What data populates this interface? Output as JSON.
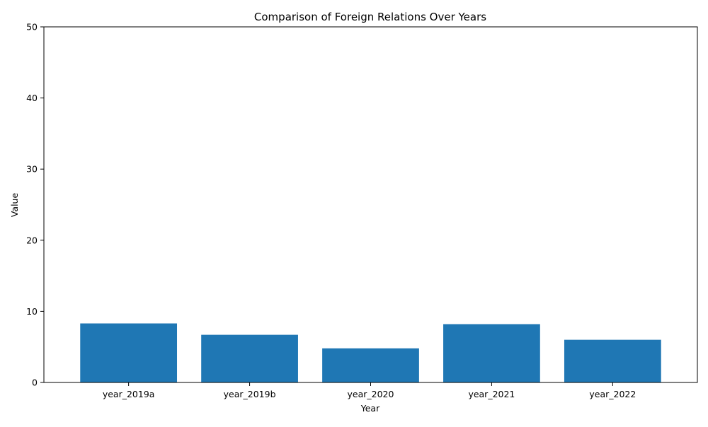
{
  "chart_data": {
    "type": "bar",
    "title": "Comparison of Foreign Relations Over Years",
    "xlabel": "Year",
    "ylabel": "Value",
    "categories": [
      "year_2019a",
      "year_2019b",
      "year_2020",
      "year_2021",
      "year_2022"
    ],
    "values": [
      8.3,
      6.7,
      4.8,
      8.2,
      6.0
    ],
    "ylim": [
      0,
      50
    ],
    "yticks": [
      0,
      10,
      20,
      30,
      40,
      50
    ],
    "bar_color": "#1f77b4",
    "grid": false,
    "legend": "none"
  }
}
